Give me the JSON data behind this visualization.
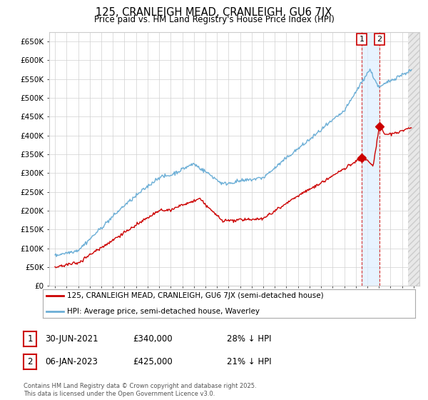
{
  "title": "125, CRANLEIGH MEAD, CRANLEIGH, GU6 7JX",
  "subtitle": "Price paid vs. HM Land Registry's House Price Index (HPI)",
  "ylabel_ticks": [
    "£0",
    "£50K",
    "£100K",
    "£150K",
    "£200K",
    "£250K",
    "£300K",
    "£350K",
    "£400K",
    "£450K",
    "£500K",
    "£550K",
    "£600K",
    "£650K"
  ],
  "ylim": [
    0,
    675000
  ],
  "ytick_values": [
    0,
    50000,
    100000,
    150000,
    200000,
    250000,
    300000,
    350000,
    400000,
    450000,
    500000,
    550000,
    600000,
    650000
  ],
  "xlim_start": 1994.5,
  "xlim_end": 2026.5,
  "hpi_color": "#6baed6",
  "price_color": "#cc0000",
  "sale1_date": 2021.5,
  "sale1_price": 340000,
  "sale2_date": 2023.05,
  "sale2_price": 425000,
  "legend_label1": "125, CRANLEIGH MEAD, CRANLEIGH, GU6 7JX (semi-detached house)",
  "legend_label2": "HPI: Average price, semi-detached house, Waverley",
  "footer": "Contains HM Land Registry data © Crown copyright and database right 2025.\nThis data is licensed under the Open Government Licence v3.0.",
  "background_color": "#ffffff",
  "grid_color": "#d0d0d0",
  "shade_color": "#ddeeff",
  "hatch_color": "#e8e8e8"
}
